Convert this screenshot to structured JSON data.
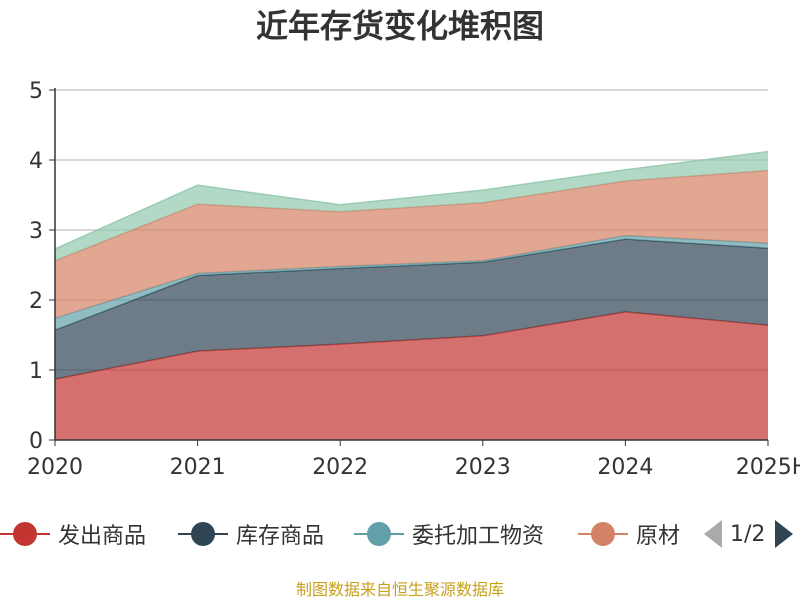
{
  "title": "近年存货变化堆积图",
  "source": "制图数据来自恒生聚源数据库",
  "pager": "1/2",
  "colors": {
    "series": [
      "#c23531",
      "#2f4554",
      "#61a0a8",
      "#d48265",
      "#91c7ae"
    ],
    "ylabel": "#c23531",
    "source": "#c8a020"
  },
  "legend": {
    "items": [
      "发出商品",
      "库存商品",
      "委托加工物资",
      "原材"
    ]
  },
  "chart_data": {
    "type": "area",
    "stacked": true,
    "title": "近年存货变化堆积图",
    "ylabel": "",
    "xlabel": "",
    "categories": [
      "2020",
      "2021",
      "2022",
      "2023",
      "2024",
      "2025H"
    ],
    "ylim": [
      0,
      5
    ],
    "yticks": [
      0,
      1,
      2,
      3,
      4,
      5
    ],
    "grid": true,
    "series": [
      {
        "name": "发出商品",
        "values": [
          0.87,
          1.27,
          1.37,
          1.49,
          1.83,
          1.64
        ]
      },
      {
        "name": "库存商品",
        "values": [
          0.7,
          1.08,
          1.08,
          1.05,
          1.04,
          1.1
        ]
      },
      {
        "name": "委托加工物资",
        "values": [
          0.17,
          0.03,
          0.03,
          0.02,
          0.05,
          0.07
        ]
      },
      {
        "name": "原材",
        "values": [
          0.82,
          0.99,
          0.78,
          0.83,
          0.78,
          1.04
        ]
      },
      {
        "values": [
          0.17,
          0.27,
          0.1,
          0.18,
          0.16,
          0.27
        ]
      }
    ]
  }
}
